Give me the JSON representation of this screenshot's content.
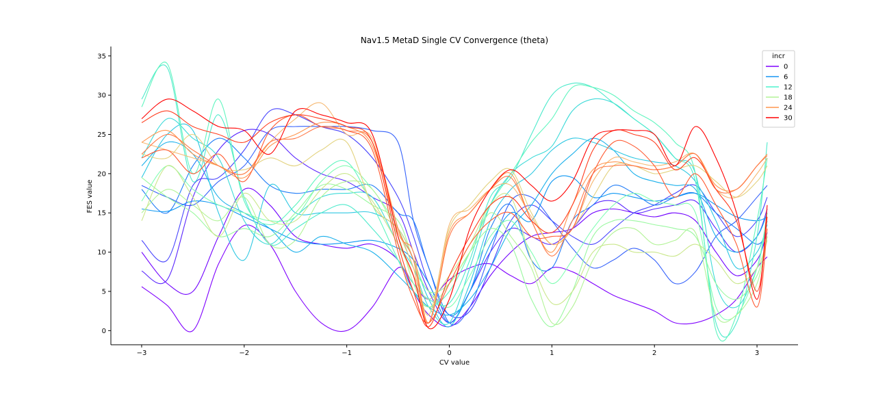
{
  "chart_data": {
    "type": "line",
    "title": "Nav1.5 MetaD Single CV Convergence (theta)",
    "xlabel": "CV value",
    "ylabel": "FES value",
    "xlim": [
      -3.3,
      3.4
    ],
    "ylim": [
      -1.8,
      36.2
    ],
    "xticks": [
      -3,
      -2,
      -1,
      0,
      1,
      2,
      3
    ],
    "xtick_labels": [
      "−3",
      "−2",
      "−1",
      "0",
      "1",
      "2",
      "3"
    ],
    "yticks": [
      0,
      5,
      10,
      15,
      20,
      25,
      30,
      35
    ],
    "ytick_labels": [
      "0",
      "5",
      "10",
      "15",
      "20",
      "25",
      "30",
      "35"
    ],
    "grid": false,
    "legend": {
      "title": "incr",
      "placement": "top-right",
      "entries": [
        {
          "label": "0",
          "color": "#7f00ff"
        },
        {
          "label": "6",
          "color": "#1996f3"
        },
        {
          "label": "12",
          "color": "#4df3ce"
        },
        {
          "label": "18",
          "color": "#b2f396"
        },
        {
          "label": "24",
          "color": "#ff964f"
        },
        {
          "label": "30",
          "color": "#ff0000"
        }
      ]
    },
    "x": [
      -3.0,
      -2.75,
      -2.5,
      -2.25,
      -2.0,
      -1.75,
      -1.5,
      -1.25,
      -1.0,
      -0.75,
      -0.5,
      -0.35,
      -0.2,
      0.0,
      0.2,
      0.4,
      0.6,
      0.8,
      1.0,
      1.2,
      1.4,
      1.6,
      1.8,
      2.0,
      2.2,
      2.4,
      2.6,
      2.8,
      3.0,
      3.1
    ],
    "series": [
      {
        "color": "#7f00ff",
        "width": 1,
        "values": [
          5.6,
          3.2,
          0.0,
          8.5,
          13.4,
          11.0,
          5.0,
          1.0,
          0.0,
          3.0,
          8.0,
          6.0,
          4.0,
          6.5,
          8.0,
          8.5,
          7.0,
          6.0,
          8.0,
          7.5,
          6.0,
          4.5,
          3.5,
          2.5,
          1.0,
          1.0,
          2.0,
          4.0,
          8.0,
          9.4
        ]
      },
      {
        "color": "#7000ff",
        "width": 1,
        "values": [
          10.0,
          6.0,
          5.0,
          12.0,
          18.0,
          16.0,
          12.0,
          11.0,
          10.5,
          11.0,
          9.0,
          5.0,
          2.0,
          0.5,
          3.0,
          7.0,
          10.0,
          12.0,
          12.5,
          13.0,
          15.0,
          15.5,
          15.0,
          14.5,
          15.0,
          14.0,
          10.0,
          7.0,
          9.0,
          12.5
        ]
      },
      {
        "color": "#5a26fe",
        "width": 1,
        "values": [
          7.6,
          6.5,
          17.0,
          23.0,
          25.5,
          25.0,
          22.0,
          20.0,
          19.0,
          17.0,
          15.0,
          10.0,
          5.0,
          1.0,
          5.0,
          10.0,
          13.0,
          12.0,
          11.0,
          13.0,
          16.0,
          16.5,
          15.0,
          15.5,
          16.0,
          16.5,
          13.0,
          10.0,
          12.0,
          15.5
        ]
      },
      {
        "color": "#4743fd",
        "width": 1,
        "values": [
          11.5,
          9.0,
          18.5,
          19.5,
          23.0,
          28.0,
          27.5,
          26.0,
          25.0,
          22.0,
          17.0,
          12.0,
          6.0,
          2.0,
          2.5,
          8.0,
          14.0,
          16.0,
          14.0,
          12.0,
          11.0,
          13.0,
          15.0,
          16.0,
          17.5,
          18.5,
          15.0,
          12.0,
          14.0,
          17.0
        ]
      },
      {
        "color": "#3461fb",
        "width": 1,
        "values": [
          18.5,
          17.0,
          16.0,
          19.0,
          21.0,
          25.5,
          26.0,
          26.0,
          26.0,
          25.5,
          24.0,
          14.0,
          8.0,
          1.0,
          3.0,
          10.0,
          16.5,
          17.0,
          14.0,
          10.5,
          8.0,
          9.0,
          10.5,
          9.0,
          6.0,
          7.5,
          12.0,
          14.0,
          17.0,
          18.5
        ]
      },
      {
        "color": "#1f7cf7",
        "width": 1,
        "values": [
          18.0,
          15.0,
          21.0,
          24.5,
          22.0,
          18.5,
          17.5,
          18.0,
          18.0,
          18.5,
          15.0,
          14.0,
          8.0,
          2.0,
          5.0,
          13.0,
          16.0,
          9.0,
          8.0,
          14.0,
          16.0,
          18.5,
          17.5,
          16.0,
          17.0,
          17.5,
          15.0,
          13.0,
          11.0,
          12.5
        ]
      },
      {
        "color": "#0c96f2",
        "width": 1,
        "values": [
          15.5,
          15.2,
          16.5,
          16.0,
          14.5,
          13.0,
          11.5,
          11.0,
          11.2,
          11.5,
          10.5,
          9.0,
          6.0,
          1.0,
          5.0,
          11.0,
          15.0,
          14.0,
          19.0,
          19.5,
          17.0,
          17.5,
          17.0,
          16.5,
          17.0,
          17.5,
          16.0,
          14.5,
          14.0,
          14.5
        ]
      },
      {
        "color": "#1ab0eb",
        "width": 1,
        "values": [
          21.0,
          24.0,
          22.5,
          17.0,
          15.0,
          13.0,
          10.0,
          12.0,
          11.0,
          10.0,
          7.0,
          5.0,
          3.0,
          2.0,
          4.0,
          8.0,
          13.0,
          16.0,
          20.0,
          22.5,
          24.5,
          23.0,
          20.0,
          19.0,
          18.5,
          18.0,
          12.0,
          10.0,
          12.0,
          15.0
        ]
      },
      {
        "color": "#2cc7e2",
        "width": 1,
        "values": [
          19.5,
          25.0,
          25.5,
          15.0,
          9.0,
          18.5,
          15.0,
          15.0,
          15.0,
          15.0,
          13.0,
          9.0,
          4.0,
          0.5,
          6.0,
          14.0,
          18.0,
          20.0,
          23.0,
          24.5,
          24.0,
          23.0,
          22.0,
          21.5,
          21.0,
          19.0,
          14.0,
          8.0,
          10.0,
          13.5
        ]
      },
      {
        "color": "#3ddad8",
        "width": 1,
        "values": [
          22.0,
          27.0,
          24.5,
          22.0,
          14.0,
          11.0,
          14.5,
          17.0,
          17.5,
          17.0,
          11.0,
          8.0,
          3.0,
          1.0,
          8.0,
          16.0,
          20.0,
          22.0,
          23.5,
          28.0,
          29.5,
          29.0,
          27.0,
          25.0,
          22.0,
          20.0,
          6.0,
          3.0,
          8.0,
          14.0
        ]
      },
      {
        "color": "#4eeacc",
        "width": 1,
        "values": [
          29.5,
          33.5,
          19.0,
          27.5,
          17.0,
          11.0,
          13.0,
          15.0,
          16.0,
          13.0,
          9.0,
          6.0,
          4.0,
          3.5,
          9.0,
          17.0,
          19.5,
          25.0,
          30.0,
          31.5,
          31.0,
          29.0,
          27.0,
          25.0,
          22.0,
          19.0,
          1.0,
          1.0,
          12.0,
          24.0
        ]
      },
      {
        "color": "#60f5bf",
        "width": 1,
        "values": [
          28.5,
          34.0,
          20.0,
          29.5,
          16.5,
          13.5,
          16.0,
          20.0,
          21.5,
          16.0,
          9.0,
          5.0,
          3.0,
          5.0,
          10.0,
          16.0,
          20.0,
          24.0,
          27.0,
          31.0,
          31.0,
          30.0,
          28.0,
          26.5,
          24.0,
          20.0,
          0.0,
          2.0,
          14.0,
          22.0
        ]
      },
      {
        "color": "#80feb3",
        "width": 1,
        "values": [
          16.5,
          21.0,
          18.0,
          16.0,
          15.0,
          14.0,
          14.5,
          19.0,
          21.0,
          18.0,
          13.0,
          8.0,
          5.0,
          3.0,
          7.0,
          12.0,
          14.0,
          10.0,
          6.0,
          9.0,
          13.0,
          16.0,
          17.5,
          16.5,
          16.0,
          15.0,
          3.0,
          2.0,
          8.0,
          15.0
        ]
      },
      {
        "color": "#99f89f",
        "width": 1,
        "values": [
          19.5,
          17.0,
          15.0,
          12.0,
          13.0,
          12.0,
          15.0,
          18.5,
          18.0,
          16.0,
          14.0,
          9.0,
          5.0,
          6.0,
          10.0,
          13.0,
          11.0,
          4.0,
          0.5,
          5.0,
          12.0,
          14.0,
          14.0,
          13.5,
          13.0,
          12.0,
          6.0,
          4.0,
          7.0,
          12.0
        ]
      },
      {
        "color": "#b2f396",
        "width": 1,
        "values": [
          15.0,
          18.0,
          16.0,
          14.0,
          17.0,
          11.0,
          11.5,
          17.0,
          19.0,
          18.0,
          12.0,
          6.0,
          3.0,
          6.0,
          10.0,
          15.0,
          12.0,
          8.0,
          1.0,
          3.0,
          9.0,
          12.5,
          13.0,
          11.0,
          11.5,
          12.5,
          2.0,
          2.0,
          6.0,
          12.0
        ]
      },
      {
        "color": "#cae78b",
        "width": 1,
        "values": [
          14.0,
          21.0,
          17.0,
          12.0,
          17.5,
          14.0,
          14.0,
          18.0,
          20.0,
          16.5,
          11.0,
          7.0,
          4.0,
          7.0,
          11.0,
          16.0,
          17.0,
          9.0,
          3.5,
          5.0,
          10.0,
          11.0,
          10.0,
          10.0,
          9.5,
          11.0,
          9.0,
          6.0,
          8.0,
          11.5
        ]
      },
      {
        "color": "#e3d27e",
        "width": 1,
        "values": [
          22.5,
          22.0,
          25.0,
          21.0,
          20.5,
          22.0,
          21.0,
          23.0,
          24.0,
          16.0,
          13.0,
          9.0,
          2.0,
          13.0,
          16.0,
          19.0,
          20.5,
          15.0,
          11.0,
          13.0,
          17.0,
          21.0,
          21.0,
          20.0,
          20.5,
          21.0,
          19.0,
          17.0,
          19.0,
          21.0
        ]
      },
      {
        "color": "#f6b871",
        "width": 1,
        "values": [
          24.0,
          23.0,
          22.0,
          21.0,
          20.0,
          24.0,
          27.0,
          29.0,
          25.0,
          24.5,
          13.0,
          8.0,
          1.0,
          13.5,
          15.5,
          18.0,
          18.5,
          14.5,
          11.0,
          13.0,
          19.0,
          22.0,
          21.5,
          21.0,
          21.5,
          22.5,
          18.0,
          17.0,
          20.0,
          22.0
        ]
      },
      {
        "color": "#ff964f",
        "width": 1.6,
        "values": [
          24.0,
          25.5,
          22.5,
          21.0,
          19.5,
          23.5,
          25.0,
          26.5,
          26.0,
          23.5,
          12.5,
          10.0,
          1.0,
          12.5,
          15.0,
          18.0,
          20.0,
          14.0,
          10.0,
          16.0,
          20.5,
          21.5,
          21.0,
          20.5,
          21.0,
          22.5,
          18.5,
          18.0,
          21.0,
          22.5
        ]
      },
      {
        "color": "#ff7846",
        "width": 1.6,
        "values": [
          22.5,
          25.0,
          23.0,
          21.0,
          20.0,
          24.0,
          24.5,
          26.0,
          25.5,
          24.0,
          13.0,
          9.0,
          1.0,
          12.0,
          15.0,
          18.0,
          19.5,
          14.0,
          9.5,
          14.0,
          20.0,
          21.0,
          21.0,
          20.5,
          21.0,
          22.5,
          18.0,
          18.0,
          21.0,
          22.3
        ]
      },
      {
        "color": "#ff5a32",
        "width": 1,
        "values": [
          22.0,
          23.0,
          20.0,
          22.5,
          19.0,
          25.5,
          27.5,
          26.0,
          25.5,
          23.0,
          10.0,
          4.0,
          1.0,
          6.0,
          11.0,
          14.0,
          15.0,
          12.0,
          12.0,
          13.0,
          20.0,
          24.0,
          23.5,
          21.0,
          17.0,
          20.0,
          16.0,
          11.0,
          3.0,
          13.0
        ]
      },
      {
        "color": "#ff3c1e",
        "width": 1,
        "values": [
          26.5,
          28.0,
          26.0,
          25.0,
          24.0,
          26.5,
          27.5,
          27.0,
          26.0,
          24.0,
          11.0,
          5.0,
          0.5,
          7.0,
          12.0,
          16.0,
          17.0,
          14.0,
          12.5,
          16.0,
          23.0,
          25.5,
          25.0,
          24.0,
          20.5,
          22.0,
          18.0,
          14.0,
          5.0,
          14.5
        ]
      },
      {
        "color": "#ff0000",
        "width": 1.6,
        "values": [
          27.0,
          29.5,
          28.0,
          26.0,
          25.5,
          22.5,
          28.0,
          27.5,
          26.5,
          25.0,
          12.0,
          7.0,
          0.3,
          4.0,
          13.0,
          18.0,
          20.5,
          18.5,
          16.5,
          19.0,
          24.5,
          25.5,
          25.5,
          25.0,
          21.0,
          26.0,
          22.0,
          15.0,
          4.0,
          16.0
        ]
      }
    ]
  }
}
